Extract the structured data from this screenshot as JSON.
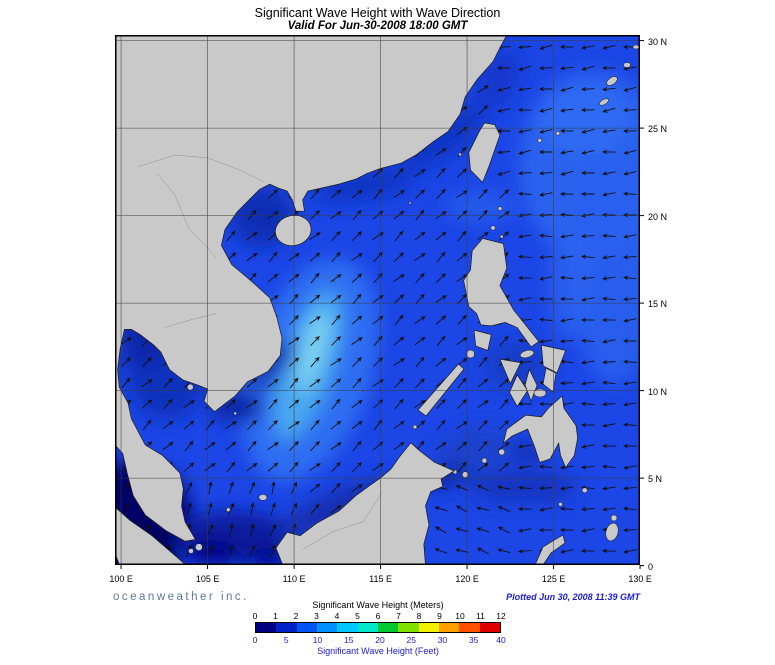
{
  "title": "Significant Wave Height with Wave Direction",
  "subtitle": "Valid For Jun-30-2008 18:00 GMT",
  "branding": "oceanweather inc.",
  "plotted": "Plotted Jun 30, 2008 11:39 GMT",
  "axes": {
    "lon_ticks": [
      "100 E",
      "105 E",
      "110 E",
      "115 E",
      "120 E",
      "125 E",
      "130 E"
    ],
    "lat_ticks": [
      "30 N",
      "25 N",
      "20 N",
      "15 N",
      "10 N",
      "5 N",
      "0"
    ]
  },
  "legend": {
    "meters_label": "Significant Wave Height (Meters)",
    "feet_label": "Significant Wave Height (Feet)",
    "meters_ticks": [
      "0",
      "1",
      "2",
      "3",
      "4",
      "5",
      "6",
      "7",
      "8",
      "9",
      "10",
      "11",
      "12"
    ],
    "feet_ticks": [
      "0",
      "5",
      "10",
      "15",
      "20",
      "25",
      "30",
      "35",
      "40"
    ],
    "colors": [
      "#000082",
      "#0020c8",
      "#0055f0",
      "#0090ff",
      "#00c8ff",
      "#00e8c8",
      "#00c830",
      "#80e000",
      "#f0f000",
      "#ffa000",
      "#ff5000",
      "#e00000"
    ]
  },
  "map": {
    "ocean_base": "#1c46e6",
    "land_color": "#c9c9c9"
  }
}
